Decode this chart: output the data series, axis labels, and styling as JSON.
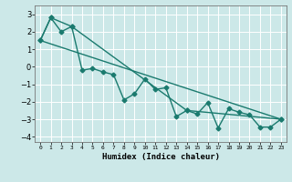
{
  "title": "",
  "xlabel": "Humidex (Indice chaleur)",
  "background_color": "#cce8e8",
  "grid_color": "#ffffff",
  "line_color": "#1a7a6e",
  "xlim": [
    -0.5,
    23.5
  ],
  "ylim": [
    -4.3,
    3.5
  ],
  "yticks": [
    -4,
    -3,
    -2,
    -1,
    0,
    1,
    2,
    3
  ],
  "xticks": [
    0,
    1,
    2,
    3,
    4,
    5,
    6,
    7,
    8,
    9,
    10,
    11,
    12,
    13,
    14,
    15,
    16,
    17,
    18,
    19,
    20,
    21,
    22,
    23
  ],
  "xtick_labels": [
    "0",
    "1",
    "2",
    "3",
    "4",
    "5",
    "6",
    "7",
    "8",
    "9",
    "10",
    "11",
    "12",
    "13",
    "14",
    "15",
    "16",
    "17",
    "18",
    "19",
    "20",
    "21",
    "22",
    "23"
  ],
  "series1_x": [
    0,
    1,
    2,
    3,
    4,
    5,
    6,
    7,
    8,
    9,
    10,
    11,
    12,
    13,
    14,
    15,
    16,
    17,
    18,
    19,
    20,
    21,
    22,
    23
  ],
  "series1_y": [
    1.5,
    2.8,
    2.0,
    2.3,
    -0.2,
    -0.1,
    -0.3,
    -0.45,
    -1.9,
    -1.55,
    -0.7,
    -1.3,
    -1.2,
    -2.85,
    -2.5,
    -2.7,
    -2.05,
    -3.5,
    -2.4,
    -2.6,
    -2.75,
    -3.45,
    -3.45,
    -3.0
  ],
  "series2_x": [
    0,
    1,
    3,
    14,
    23
  ],
  "series2_y": [
    1.5,
    2.8,
    2.3,
    -2.5,
    -3.0
  ],
  "series3_x": [
    0,
    23
  ],
  "series3_y": [
    1.5,
    -3.0
  ],
  "marker": "D",
  "marker_size": 2.5,
  "linewidth": 1.0
}
